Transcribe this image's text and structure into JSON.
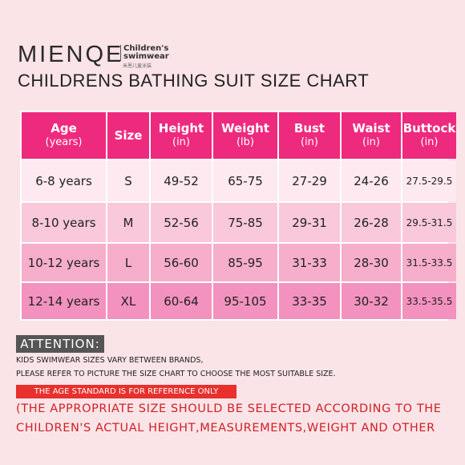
{
  "header": {
    "brand": "MIENQE",
    "tagline": [
      "Children's",
      "swimwear"
    ],
    "tagline_cn": "米恩儿童泳装",
    "title": "CHILDRENS BATHING SUIT SIZE CHART"
  },
  "table": {
    "columns": [
      {
        "name": "Age",
        "unit": "(years)"
      },
      {
        "name": "Size"
      },
      {
        "name": "Height",
        "unit": "(in)"
      },
      {
        "name": "Weight",
        "unit": "(lb)"
      },
      {
        "name": "Bust",
        "unit": "(in)"
      },
      {
        "name": "Waist",
        "unit": "(in)"
      },
      {
        "name": "Buttock",
        "unit": "(in)"
      }
    ],
    "rows": [
      [
        "6-8 years",
        "S",
        "49-52",
        "65-75",
        "27-29",
        "24-26",
        "27.5-29.5"
      ],
      [
        "8-10 years",
        "M",
        "52-56",
        "75-85",
        "29-31",
        "26-28",
        "29.5-31.5"
      ],
      [
        "10-12 years",
        "L",
        "56-60",
        "85-95",
        "31-33",
        "28-30",
        "31.5-33.5"
      ],
      [
        "12-14 years",
        "XL",
        "60-64",
        "95-105",
        "33-35",
        "30-32",
        "33.5-35.5"
      ]
    ]
  },
  "attention": {
    "label": "ATTENTION:",
    "lines": [
      "KIDS SWIMWEAR SIZES VARY BETWEEN BRANDS,",
      "PLEASE REFER TO PICTURE THE SIZE CHART TO CHOOSE THE MOST SUITABLE SIZE."
    ],
    "highlight": "THE AGE STANDARD IS FOR REFERENCE ONLY",
    "note": [
      "(THE APPROPRIATE SIZE SHOULD BE SELECTED ACCORDING TO THE",
      "CHILDREN'S ACTUAL HEIGHT,MEASUREMENTS,WEIGHT AND OTHER"
    ]
  }
}
